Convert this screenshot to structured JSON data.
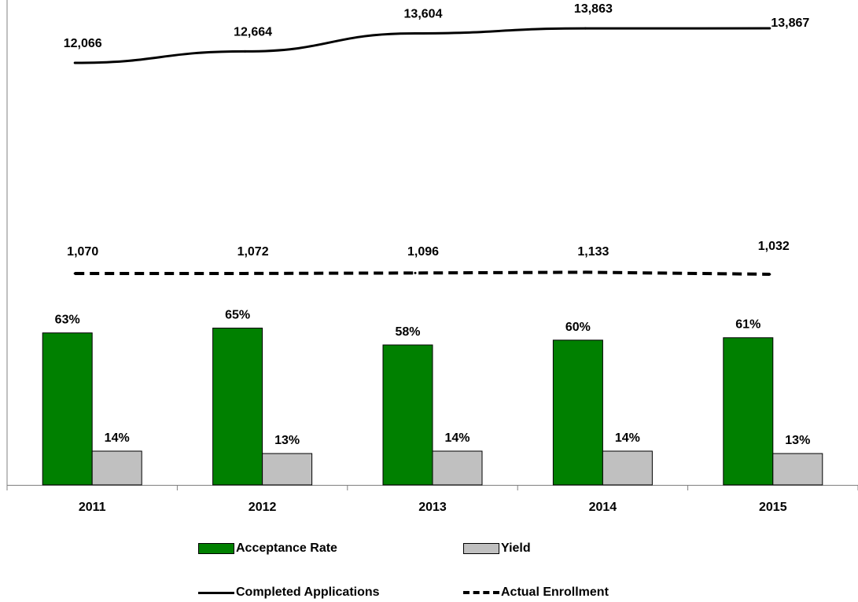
{
  "chart_data": {
    "type": "bar",
    "categories": [
      "2011",
      "2012",
      "2013",
      "2014",
      "2015"
    ],
    "series": [
      {
        "name": "Acceptance Rate",
        "kind": "bar",
        "color": "#008000",
        "values": [
          63,
          65,
          58,
          60,
          61
        ],
        "labels": [
          "63%",
          "65%",
          "58%",
          "60%",
          "61%"
        ]
      },
      {
        "name": "Yield",
        "kind": "bar",
        "color": "#c0c0c0",
        "values": [
          14,
          13,
          14,
          14,
          13
        ],
        "labels": [
          "14%",
          "13%",
          "14%",
          "14%",
          "13%"
        ]
      },
      {
        "name": "Completed Applications",
        "kind": "line",
        "style": "solid",
        "color": "#000000",
        "values": [
          12066,
          12664,
          13604,
          13863,
          13867
        ],
        "labels": [
          "12,066",
          "12,664",
          "13,604",
          "13,863",
          "13,867"
        ]
      },
      {
        "name": "Actual Enrollment",
        "kind": "line",
        "style": "dashed",
        "color": "#000000",
        "values": [
          1070,
          1072,
          1096,
          1133,
          1032
        ],
        "labels": [
          "1,070",
          "1,072",
          "1,096",
          "1,133",
          "1,032"
        ]
      }
    ],
    "legend_position": "bottom",
    "grid": false
  }
}
